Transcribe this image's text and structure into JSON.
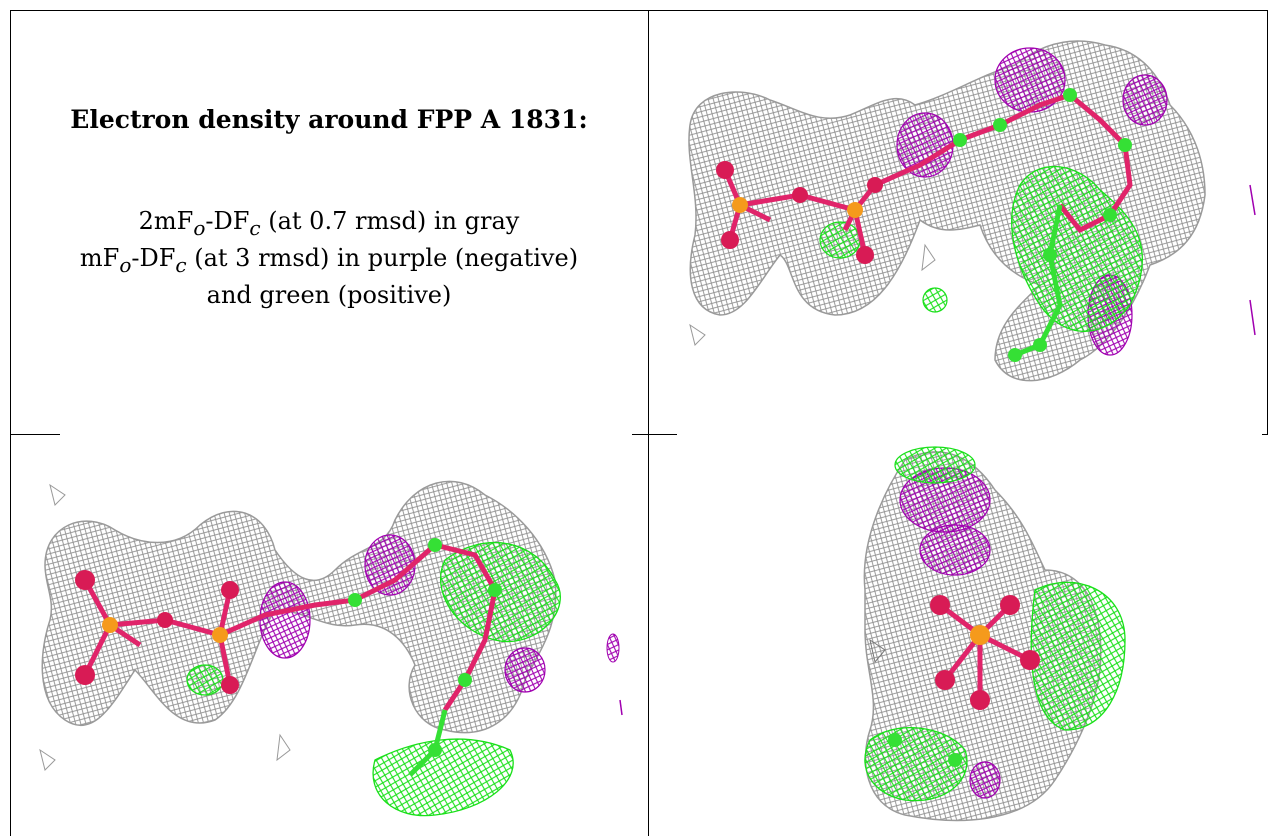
{
  "caption": {
    "title": "Electron density around FPP A 1831:",
    "line1": {
      "pre": "2mF",
      "sub1": "o",
      "mid": "-DF",
      "sub2": "c",
      "post": " (at 0.7 rmsd) in gray"
    },
    "line2": {
      "pre": "mF",
      "sub1": "o",
      "mid": "-DF",
      "sub2": "c",
      "post": " (at 3 rmsd) in purple (negative)"
    },
    "line3": "and green (positive)"
  },
  "colors": {
    "mesh_gray": "#9a9a9a",
    "negative_purple": "#b000b8",
    "positive_green": "#22e822",
    "oxygen": "#d81b55",
    "phosphorus": "#f59a1c",
    "carbon": "#35e035"
  },
  "panels": [
    {
      "view": "top-right"
    },
    {
      "view": "bottom-left"
    },
    {
      "view": "bottom-right"
    }
  ]
}
